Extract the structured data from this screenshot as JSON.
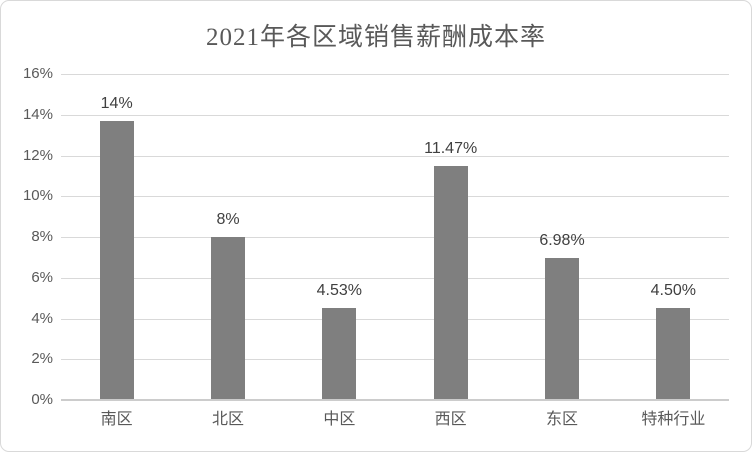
{
  "chart": {
    "colors": {
      "bar": "#7f7f7f",
      "gridline": "#d9d9d9",
      "axis_line": "#cccccc",
      "title_text": "#595959",
      "tick_text": "#595959",
      "data_label_text": "#404040",
      "frame_border": "#d9d9d9",
      "background": "#ffffff"
    }
  },
  "chart_data": {
    "type": "bar",
    "title": "2021年各区域销售薪酬成本率",
    "categories": [
      "南区",
      "北区",
      "中区",
      "西区",
      "东区",
      "特种行业"
    ],
    "values": [
      13.7,
      8,
      4.53,
      11.47,
      6.98,
      4.5
    ],
    "data_labels": [
      "14%",
      "8%",
      "4.53%",
      "11.47%",
      "6.98%",
      "4.50%"
    ],
    "xlabel": "",
    "ylabel": "",
    "ylim": [
      0,
      16
    ],
    "ytick_step": 2,
    "ytick_labels": [
      "0%",
      "2%",
      "4%",
      "6%",
      "8%",
      "10%",
      "12%",
      "14%",
      "16%"
    ],
    "grid": true,
    "legend": false
  }
}
